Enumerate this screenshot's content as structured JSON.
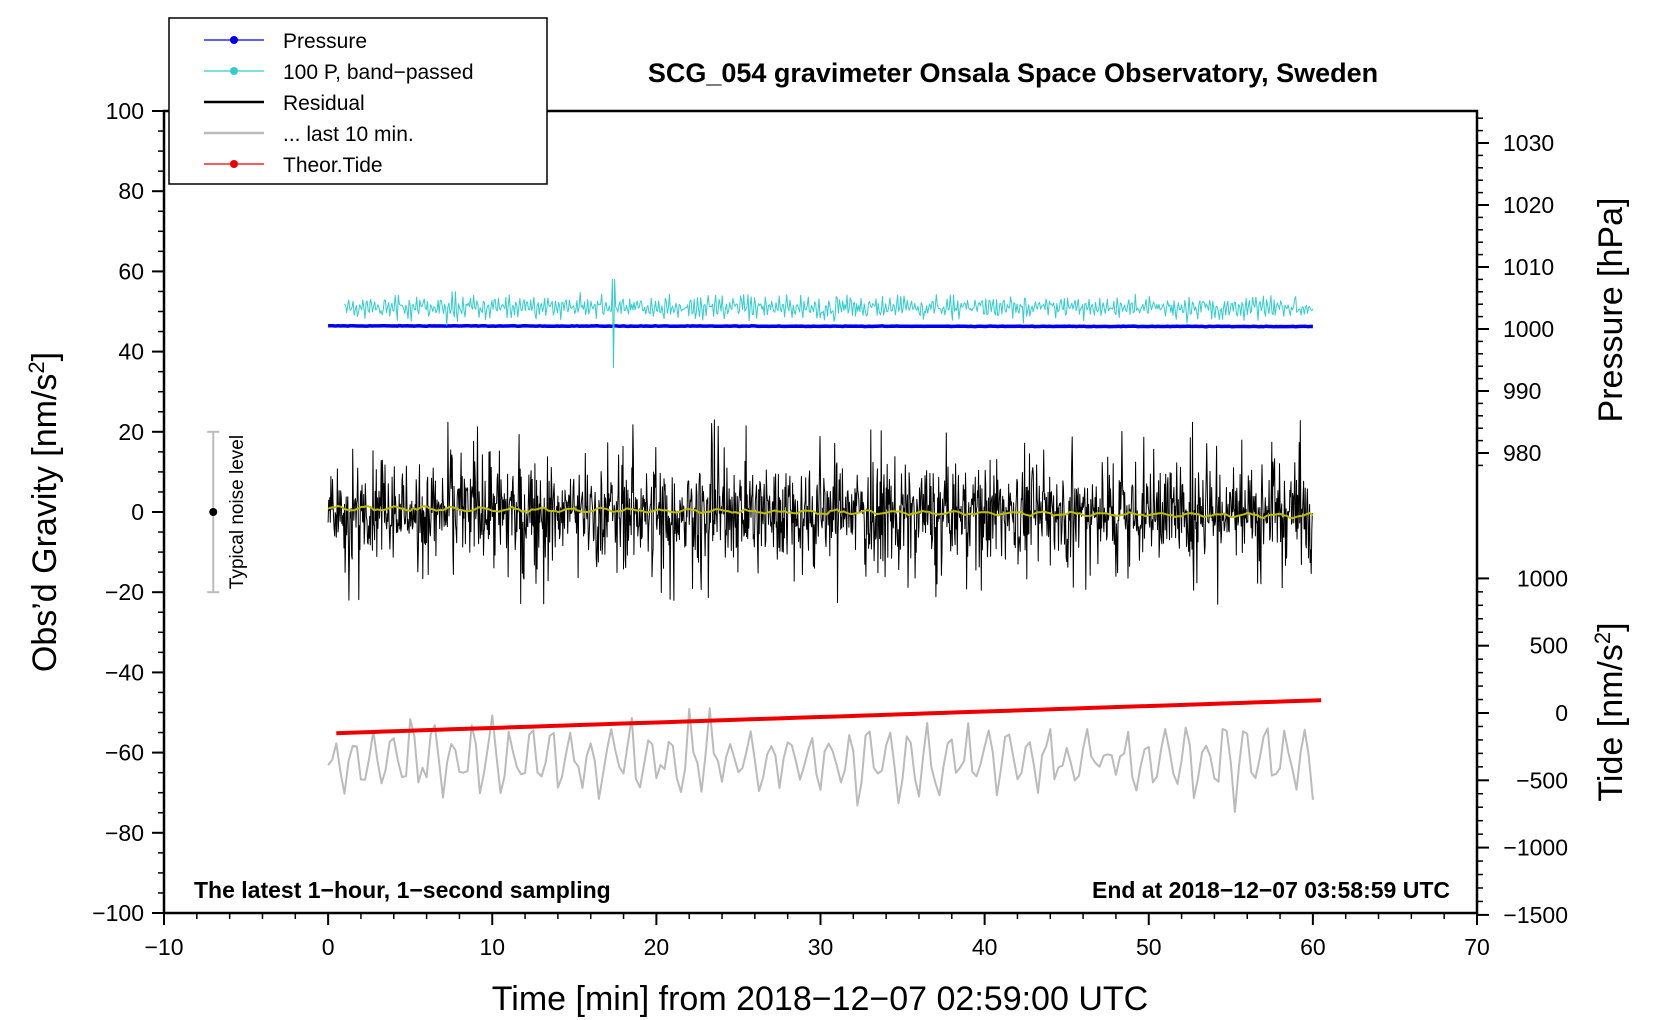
{
  "chart_data": {
    "type": "line",
    "title": "SCG_054 gravimeter Onsala Space Observatory, Sweden",
    "xlabel": "Time [min] from 2018−12−07 02:59:00 UTC",
    "ylabel_left": "Obs’d Gravity [nm/s",
    "ylabel_left_sup": "2",
    "ylabel_left_close": "]",
    "ylabel_right_pressure": "Pressure [hPa]",
    "ylabel_right_tide": "Tide [nm/s",
    "ylabel_right_tide_sup": "2",
    "ylabel_right_tide_close": "]",
    "xlim": [
      -10,
      70
    ],
    "ylim_left": [
      -100,
      100
    ],
    "pressure_range": [
      975,
      1035
    ],
    "tide_range": [
      -1500,
      1500
    ],
    "x_ticks": [
      "−10",
      "0",
      "10",
      "20",
      "30",
      "40",
      "50",
      "60",
      "70"
    ],
    "y_ticks_left": [
      "−100",
      "−80",
      "−60",
      "−40",
      "−20",
      "0",
      "20",
      "40",
      "60",
      "80",
      "100"
    ],
    "y_ticks_pressure": [
      "980",
      "990",
      "1000",
      "1010",
      "1020",
      "1030"
    ],
    "y_ticks_tide": [
      "−1500",
      "−1000",
      "−500",
      "0",
      "500",
      "1000"
    ],
    "annotation_left": "The latest 1−hour, 1−second sampling",
    "annotation_right": "End at 2018−12−07 03:58:59 UTC",
    "noise_bar": {
      "label": "Typical noise level",
      "x": -7,
      "center": 0,
      "low": -20,
      "high": 20
    },
    "legend": [
      {
        "label": "Pressure",
        "color": "#0000ee",
        "marker": true
      },
      {
        "label": "100 P, band−passed",
        "color": "#33cccc",
        "marker": true
      },
      {
        "label": "Residual",
        "color": "#000000",
        "marker": false
      },
      {
        "label": "... last 10 min.",
        "color": "#bbbbbb",
        "marker": false
      },
      {
        "label": "Theor.Tide",
        "color": "#ee0000",
        "marker": true
      }
    ],
    "series": [
      {
        "name": "Pressure",
        "axis": "pressure",
        "color": "#0000ee",
        "x_range": [
          0,
          60
        ],
        "start": 1000.5,
        "end": 1000.4,
        "noise": 0.15
      },
      {
        "name": "100 P, band−passed",
        "axis": "left",
        "color": "#33cccc",
        "x_range": [
          1,
          60
        ],
        "mean": 51,
        "noise": 3.0,
        "burst_at": 17.4,
        "burst_min": 36,
        "burst_max": 58
      },
      {
        "name": "Residual",
        "axis": "left",
        "color": "#000000",
        "x_range": [
          0,
          60
        ],
        "mean": 0,
        "noise": 6.0,
        "min": -23,
        "max": 25
      },
      {
        "name": "Residual (smoothed)",
        "axis": "left",
        "color": "#bbbb00",
        "x_range": [
          0,
          60
        ],
        "start": 1,
        "end": -1,
        "noise": 0.4
      },
      {
        "name": "... last 10 min.",
        "axis": "left",
        "color": "#bbbbbb",
        "x_range": [
          0,
          60
        ],
        "mean": -62,
        "noise": 7,
        "min": -83,
        "max": -43
      },
      {
        "name": "Theor.Tide",
        "axis": "tide",
        "color": "#ee0000",
        "x_range": [
          0.5,
          60.5
        ],
        "start": -150,
        "end": 95
      }
    ]
  }
}
